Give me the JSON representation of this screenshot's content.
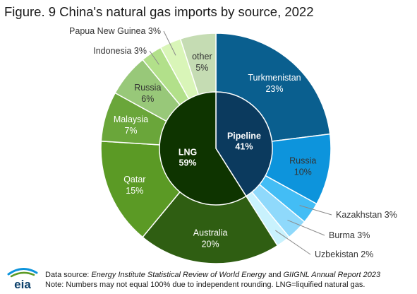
{
  "title": "Figure. 9 China's natural gas imports by source, 2022",
  "footer": {
    "source_prefix": "Data source: ",
    "source_title_1": "Energy Institute Statistical Review of World Energy",
    "source_and": " and ",
    "source_title_2": "GIIGNL Annual Report 2023",
    "note": "Note: Numbers may not equal 100% due to independent rounding. LNG=liquified natural gas."
  },
  "logo_text": "eia",
  "chart_data": {
    "type": "pie",
    "variant": "nested-donut",
    "title": "Figure. 9 China's natural gas imports by source, 2022",
    "inner": [
      {
        "label": "Pipeline",
        "value": 41,
        "value_label": "41%",
        "color": "#0b3a5e"
      },
      {
        "label": "LNG",
        "value": 59,
        "value_label": "59%",
        "color": "#0e3400"
      }
    ],
    "outer": [
      {
        "label": "Turkmenistan",
        "value": 23,
        "value_label": "23%",
        "color": "#0a5f8f",
        "group": "Pipeline"
      },
      {
        "label": "Russia",
        "value": 10,
        "value_label": "10%",
        "color": "#0d94dc",
        "group": "Pipeline"
      },
      {
        "label": "Kazakhstan",
        "value": 3,
        "value_label": "3%",
        "color": "#43bdf5",
        "group": "Pipeline"
      },
      {
        "label": "Burma",
        "value": 3,
        "value_label": "3%",
        "color": "#8fd9fb",
        "group": "Pipeline"
      },
      {
        "label": "Uzbekistan",
        "value": 2,
        "value_label": "2%",
        "color": "#c9f2fd",
        "group": "Pipeline"
      },
      {
        "label": "Australia",
        "value": 20,
        "value_label": "20%",
        "color": "#2f5e12",
        "group": "LNG"
      },
      {
        "label": "Qatar",
        "value": 15,
        "value_label": "15%",
        "color": "#5b9a25",
        "group": "LNG"
      },
      {
        "label": "Malaysia",
        "value": 7,
        "value_label": "7%",
        "color": "#6aa63a",
        "group": "LNG"
      },
      {
        "label": "Russia",
        "value": 6,
        "value_label": "6%",
        "color": "#98c879",
        "group": "LNG"
      },
      {
        "label": "Indonesia",
        "value": 3,
        "value_label": "3%",
        "color": "#b2e08a",
        "group": "LNG"
      },
      {
        "label": "Papua New Guinea",
        "value": 3,
        "value_label": "3%",
        "color": "#d9f5b8",
        "group": "LNG"
      },
      {
        "label": "other",
        "value": 5,
        "value_label": "5%",
        "color": "#c5dcb3",
        "group": "LNG"
      }
    ]
  }
}
